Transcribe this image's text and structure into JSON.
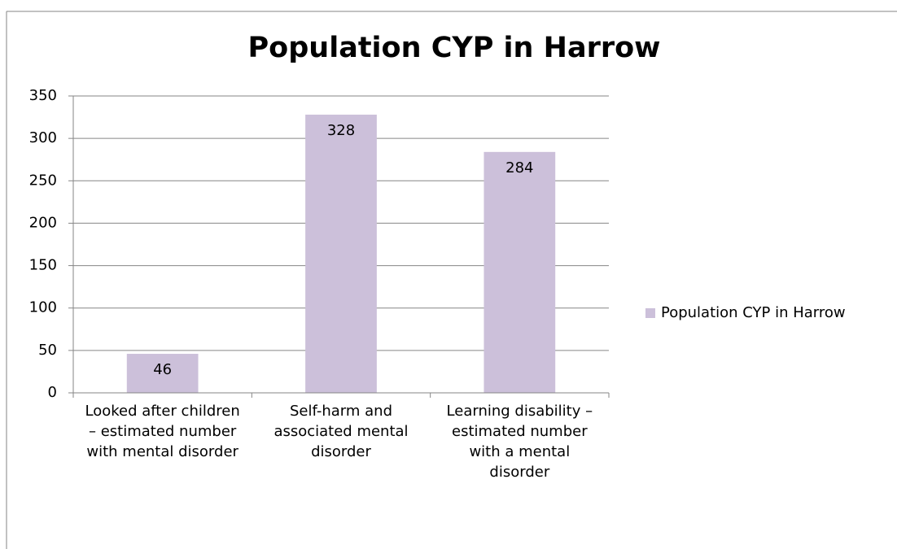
{
  "chart_data": {
    "type": "bar",
    "title": "Population CYP in Harrow",
    "categories": [
      "Looked after children – estimated number with mental disorder",
      "Self-harm and associated mental disorder",
      "Learning disability – estimated number with a mental disorder"
    ],
    "series": [
      {
        "name": "Population CYP in Harrow",
        "color": "#ccc0da",
        "values": [
          46,
          328,
          284
        ]
      }
    ],
    "ylim": [
      0,
      350
    ],
    "yticks": [
      0,
      50,
      100,
      150,
      200,
      250,
      300,
      350
    ],
    "grid": true,
    "legend": "right"
  }
}
